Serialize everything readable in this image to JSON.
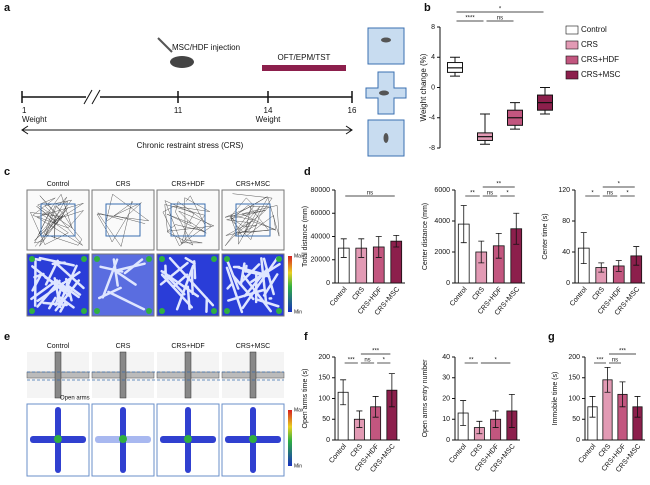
{
  "panel_labels": [
    "a",
    "b",
    "c",
    "d",
    "e",
    "f",
    "g"
  ],
  "timeline": {
    "injection": "MSC/HDF injection",
    "tests": "OFT/EPM/TST",
    "days": [
      1,
      11,
      14,
      16
    ],
    "weight_labels": [
      "Weight",
      "Weight"
    ],
    "stress": "Chronic restraint stress (CRS)"
  },
  "panel_c": {
    "groups": [
      "Control",
      "CRS",
      "CRS+HDF",
      "CRS+MSC"
    ],
    "scale": [
      "Max",
      "Min"
    ]
  },
  "panel_e": {
    "groups": [
      "Control",
      "CRS",
      "CRS+HDF",
      "CRS+MSC"
    ],
    "open_arms": "Open arms",
    "scale": [
      "Max",
      "Min"
    ]
  },
  "chart_data": [
    {
      "type": "box",
      "y_label": "Weight change (%)",
      "categories": [
        "Control",
        "CRS",
        "CRS+HDF",
        "CRS+MSC"
      ],
      "colors": [
        "#ffffff",
        "#e29ab4",
        "#c2567f",
        "#8c1f4c"
      ],
      "min": [
        1.5,
        -7.5,
        -5.5,
        -3.5
      ],
      "q1": [
        2,
        -7,
        -5,
        -3
      ],
      "median": [
        2.6,
        -6.5,
        -4,
        -2
      ],
      "q3": [
        3.3,
        -6,
        -3,
        -1
      ],
      "max": [
        4,
        -3.5,
        -2,
        0
      ],
      "ylim": [
        -8,
        8
      ],
      "yticks": [
        -8,
        -4,
        0,
        4,
        8
      ],
      "legend": [
        "Control",
        "CRS",
        "CRS+HDF",
        "CRS+MSC"
      ],
      "comparisons": [
        {
          "pair": [
            "CRS",
            "CRS+HDF"
          ],
          "label": "ns"
        },
        {
          "pair": [
            "Control",
            "CRS"
          ],
          "label": "****"
        },
        {
          "pair": [
            "Control",
            "CRS+MSC"
          ],
          "label": "*"
        }
      ]
    },
    {
      "type": "bar",
      "y_label": "Total distance (mm)",
      "categories": [
        "Control",
        "CRS",
        "CRS+HDF",
        "CRS+MSC"
      ],
      "colors": [
        "#ffffff",
        "#e29ab4",
        "#c2567f",
        "#8c1f4c"
      ],
      "values": [
        30000,
        30000,
        31000,
        36000
      ],
      "errors": [
        8000,
        8000,
        9000,
        5000
      ],
      "ylim": [
        0,
        80000
      ],
      "yticks": [
        0,
        20000,
        40000,
        60000,
        80000
      ],
      "comparisons": [
        {
          "pair": [
            "Control",
            "CRS+MSC"
          ],
          "label": "ns"
        }
      ]
    },
    {
      "type": "bar",
      "y_label": "Center distance (mm)",
      "categories": [
        "Control",
        "CRS",
        "CRS+HDF",
        "CRS+MSC"
      ],
      "colors": [
        "#ffffff",
        "#e29ab4",
        "#c2567f",
        "#8c1f4c"
      ],
      "values": [
        3800,
        2000,
        2400,
        3500
      ],
      "errors": [
        1200,
        700,
        800,
        1000
      ],
      "ylim": [
        0,
        6000
      ],
      "yticks": [
        0,
        2000,
        4000,
        6000
      ],
      "comparisons": [
        {
          "pair": [
            "CRS",
            "CRS+HDF"
          ],
          "label": "ns"
        },
        {
          "pair": [
            "CRS+HDF",
            "CRS+MSC"
          ],
          "label": "*"
        },
        {
          "pair": [
            "Control",
            "CRS"
          ],
          "label": "**"
        },
        {
          "pair": [
            "CRS",
            "CRS+MSC"
          ],
          "label": "**"
        }
      ]
    },
    {
      "type": "bar",
      "y_label": "Center time (s)",
      "categories": [
        "Control",
        "CRS",
        "CRS+HDF",
        "CRS+MSC"
      ],
      "colors": [
        "#ffffff",
        "#e29ab4",
        "#c2567f",
        "#8c1f4c"
      ],
      "values": [
        45,
        20,
        22,
        35
      ],
      "errors": [
        20,
        6,
        7,
        12
      ],
      "ylim": [
        0,
        120
      ],
      "yticks": [
        0,
        40,
        80,
        120
      ],
      "comparisons": [
        {
          "pair": [
            "CRS",
            "CRS+HDF"
          ],
          "label": "ns"
        },
        {
          "pair": [
            "CRS+HDF",
            "CRS+MSC"
          ],
          "label": "*"
        },
        {
          "pair": [
            "Control",
            "CRS"
          ],
          "label": "*"
        },
        {
          "pair": [
            "CRS",
            "CRS+MSC"
          ],
          "label": "*"
        }
      ]
    },
    {
      "type": "bar",
      "y_label": "Open arms time (s)",
      "categories": [
        "Control",
        "CRS",
        "CRS+HDF",
        "CRS+MSC"
      ],
      "colors": [
        "#ffffff",
        "#e29ab4",
        "#c2567f",
        "#8c1f4c"
      ],
      "values": [
        115,
        50,
        80,
        120
      ],
      "errors": [
        30,
        20,
        25,
        40
      ],
      "ylim": [
        0,
        200
      ],
      "yticks": [
        0,
        50,
        100,
        150,
        200
      ],
      "comparisons": [
        {
          "pair": [
            "CRS",
            "CRS+HDF"
          ],
          "label": "ns"
        },
        {
          "pair": [
            "CRS+HDF",
            "CRS+MSC"
          ],
          "label": "*"
        },
        {
          "pair": [
            "Control",
            "CRS"
          ],
          "label": "***"
        },
        {
          "pair": [
            "CRS",
            "CRS+MSC"
          ],
          "label": "***"
        }
      ]
    },
    {
      "type": "bar",
      "y_label": "Open arms entry number",
      "categories": [
        "Control",
        "CRS",
        "CRS+HDF",
        "CRS+MSC"
      ],
      "colors": [
        "#ffffff",
        "#e29ab4",
        "#c2567f",
        "#8c1f4c"
      ],
      "values": [
        13,
        6,
        10,
        14
      ],
      "errors": [
        6,
        3,
        4,
        8
      ],
      "ylim": [
        0,
        40
      ],
      "yticks": [
        0,
        10,
        20,
        30,
        40
      ],
      "comparisons": [
        {
          "pair": [
            "Control",
            "CRS"
          ],
          "label": "**"
        },
        {
          "pair": [
            "CRS",
            "CRS+MSC"
          ],
          "label": "*"
        }
      ]
    },
    {
      "type": "bar",
      "y_label": "Immobile time (s)",
      "categories": [
        "Control",
        "CRS",
        "CRS+HDF",
        "CRS+MSC"
      ],
      "colors": [
        "#ffffff",
        "#e29ab4",
        "#c2567f",
        "#8c1f4c"
      ],
      "values": [
        80,
        145,
        110,
        80
      ],
      "errors": [
        25,
        30,
        30,
        25
      ],
      "ylim": [
        0,
        200
      ],
      "yticks": [
        0,
        50,
        100,
        150,
        200
      ],
      "comparisons": [
        {
          "pair": [
            "CRS",
            "CRS+HDF"
          ],
          "label": "ns"
        },
        {
          "pair": [
            "Control",
            "CRS"
          ],
          "label": "***"
        },
        {
          "pair": [
            "CRS",
            "CRS+MSC"
          ],
          "label": "***"
        }
      ]
    }
  ]
}
